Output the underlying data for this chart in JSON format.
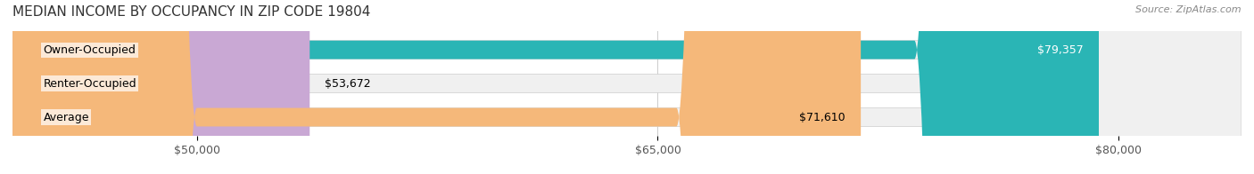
{
  "title": "MEDIAN INCOME BY OCCUPANCY IN ZIP CODE 19804",
  "source": "Source: ZipAtlas.com",
  "categories": [
    "Owner-Occupied",
    "Renter-Occupied",
    "Average"
  ],
  "values": [
    79357,
    53672,
    71610
  ],
  "bar_colors": [
    "#2ab5b5",
    "#c9a8d4",
    "#f5b87a"
  ],
  "bar_bg_color": "#f0f0f0",
  "value_labels": [
    "$79,357",
    "$53,672",
    "$71,610"
  ],
  "x_min": 44000,
  "x_max": 84000,
  "x_ticks": [
    50000,
    65000,
    80000
  ],
  "x_tick_labels": [
    "$50,000",
    "$65,000",
    "$80,000"
  ],
  "background_color": "#ffffff",
  "bar_height": 0.55,
  "title_fontsize": 11,
  "label_fontsize": 9,
  "tick_fontsize": 9,
  "source_fontsize": 8
}
